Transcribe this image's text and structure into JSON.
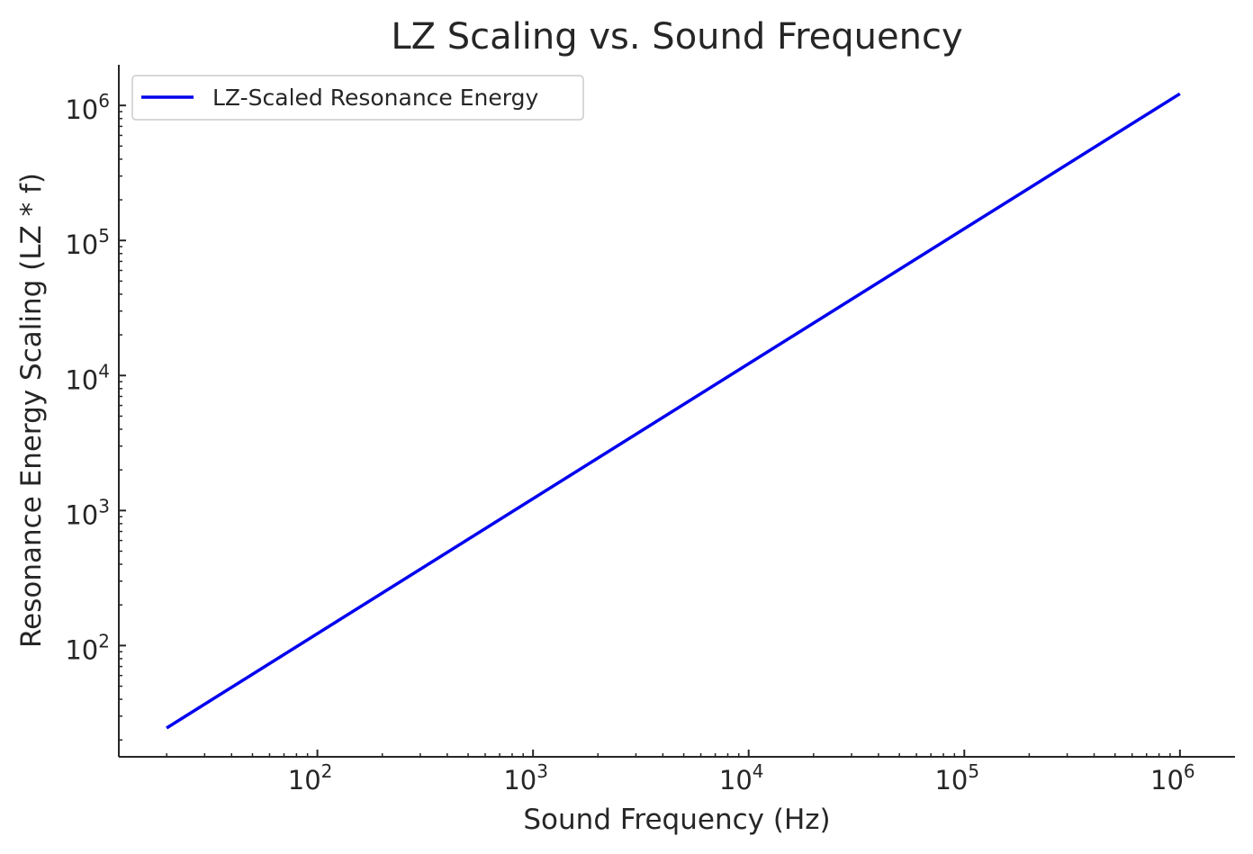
{
  "chart_data": {
    "type": "line",
    "title": "LZ Scaling vs. Sound Frequency",
    "xlabel": "Sound Frequency (Hz)",
    "ylabel": "Resonance Energy Scaling (LZ * f)",
    "x_scale": "log",
    "y_scale": "log",
    "xlim": [
      12,
      1800000
    ],
    "ylim": [
      15,
      2000000
    ],
    "x_ticks": [
      {
        "base": "10",
        "exp": "2",
        "value": 100
      },
      {
        "base": "10",
        "exp": "3",
        "value": 1000
      },
      {
        "base": "10",
        "exp": "4",
        "value": 10000
      },
      {
        "base": "10",
        "exp": "5",
        "value": 100000
      },
      {
        "base": "10",
        "exp": "6",
        "value": 1000000
      }
    ],
    "y_ticks": [
      {
        "base": "10",
        "exp": "2",
        "value": 100
      },
      {
        "base": "10",
        "exp": "3",
        "value": 1000
      },
      {
        "base": "10",
        "exp": "4",
        "value": 10000
      },
      {
        "base": "10",
        "exp": "5",
        "value": 100000
      },
      {
        "base": "10",
        "exp": "6",
        "value": 1000000
      }
    ],
    "series": [
      {
        "name": "LZ-Scaled Resonance Energy",
        "color": "#0000ee",
        "x": [
          20,
          1000000
        ],
        "y": [
          24.5,
          1220000
        ]
      }
    ],
    "grid": false,
    "legend_position": "upper left"
  }
}
